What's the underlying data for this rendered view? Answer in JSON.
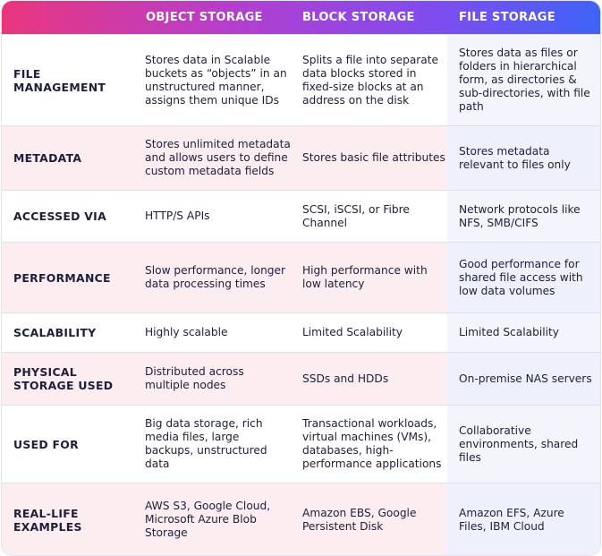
{
  "header": {
    "columns": [
      "OBJECT STORAGE",
      "BLOCK STORAGE",
      "FILE STORAGE"
    ]
  },
  "rows": [
    {
      "label": "FILE MANAGEMENT",
      "object": "Stores data in Scalable buckets as “objects” in an unstructured manner, assigns them unique IDs",
      "block": "Splits a file into separate data blocks stored in fixed-size blocks at an address on the disk",
      "file": "Stores data as files or folders in hierarchical form, as directories & sub-directories, with file path"
    },
    {
      "label": "METADATA",
      "object": "Stores unlimited metadata and allows users to define custom metadata fields",
      "block": "Stores basic file attributes",
      "file": "Stores metadata relevant to files only"
    },
    {
      "label": "ACCESSED VIA",
      "object": "HTTP/S APIs",
      "block": "SCSI, iSCSI, or Fibre Channel",
      "file": "Network protocols like NFS, SMB/CIFS"
    },
    {
      "label": "PERFORMANCE",
      "object": "Slow performance, longer data processing times",
      "block": "High performance with low latency",
      "file": "Good performance for shared file access with low data volumes"
    },
    {
      "label": "SCALABILITY",
      "object": "Highly scalable",
      "block": "Limited Scalability",
      "file": "Limited Scalability"
    },
    {
      "label": "PHYSICAL STORAGE USED",
      "object": "Distributed across multiple nodes",
      "block": "SSDs and HDDs",
      "file": "On-premise NAS servers"
    },
    {
      "label": "USED FOR",
      "object": "Big data storage, rich media files, large backups, unstructured data",
      "block": "Transactional workloads, virtual machines (VMs), databases, high-performance applications",
      "file": "Collaborative environments, shared files"
    },
    {
      "label": "REAL-LIFE EXAMPLES",
      "object": "AWS S3, Google Cloud, Microsoft Azure Blob Storage",
      "block": "Amazon EBS, Google Persistent Disk",
      "file": "Amazon EFS, Azure Files, IBM Cloud"
    }
  ]
}
